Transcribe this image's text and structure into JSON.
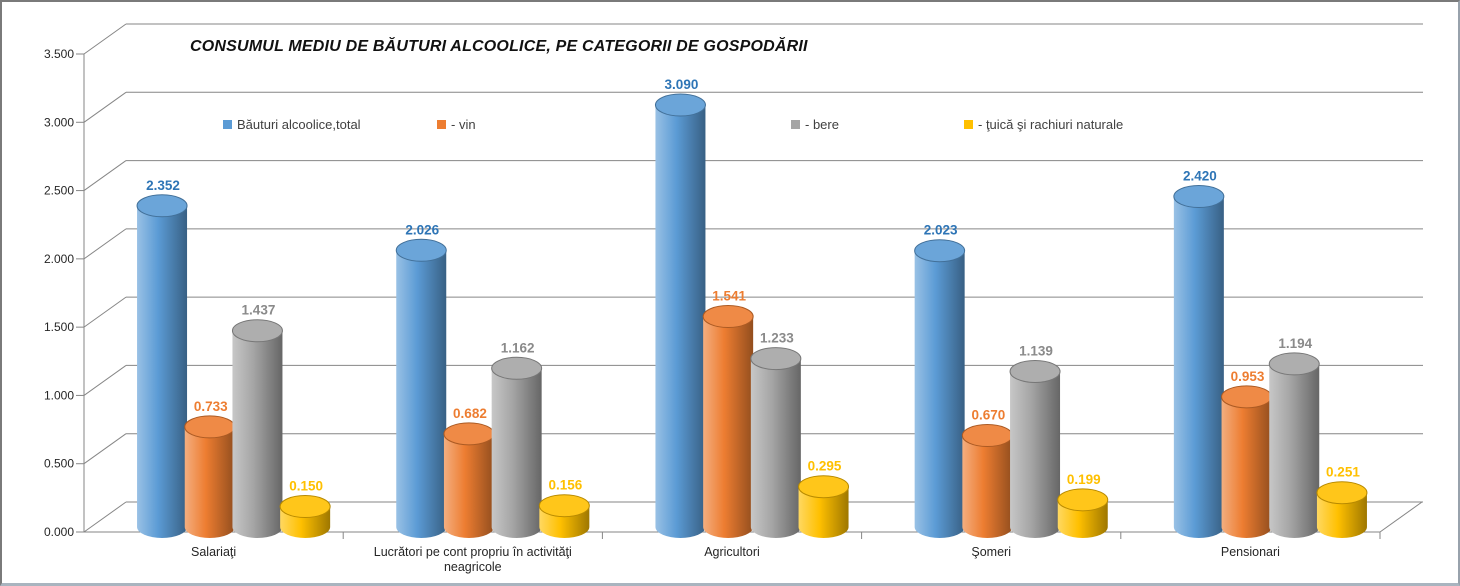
{
  "window": {
    "background": "#FFFFFF",
    "border_color": "#7A7A7A"
  },
  "chart_data": {
    "type": "bar",
    "style": "3d-cylinder",
    "title": "CONSUMUL MEDIU DE BĂUTURI ALCOOLICE, PE CATEGORII DE GOSPODĂRII",
    "categories": [
      "Salariaţi",
      "Lucrători pe cont propriu în activităţi\nneagricole",
      "Agricultori",
      "Şomeri",
      "Pensionari"
    ],
    "series": [
      {
        "name": "Băuturi alcoolice,total",
        "color": "#5B9BD5",
        "label_color": "#2E75B6",
        "values": [
          2.352,
          2.026,
          3.09,
          2.023,
          2.42
        ]
      },
      {
        "name": "- vin",
        "color": "#ED7D31",
        "label_color": "#ED7D31",
        "values": [
          0.733,
          0.682,
          1.541,
          0.67,
          0.953
        ]
      },
      {
        "name": "- bere",
        "color": "#A5A5A5",
        "label_color": "#8A8A8A",
        "values": [
          1.437,
          1.162,
          1.233,
          1.139,
          1.194
        ]
      },
      {
        "name": "- ţuică şi rachiuri naturale",
        "color": "#FFC000",
        "label_color": "#FFC000",
        "values": [
          0.15,
          0.156,
          0.295,
          0.199,
          0.251
        ]
      }
    ],
    "ylim": [
      0,
      3.5
    ],
    "ytick_step": 0.5,
    "ytick_labels": [
      "0.000",
      "0.500",
      "1.000",
      "1.500",
      "2.000",
      "2.500",
      "3.000",
      "3.500"
    ],
    "value_format": "3-decimals",
    "grid": true,
    "legend_position": "top-row",
    "gridline_color": "#868686",
    "axis_text_color": "#262626"
  }
}
